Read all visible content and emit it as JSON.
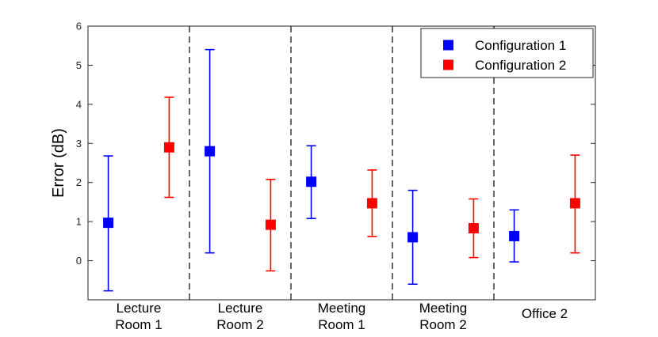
{
  "chart_data": {
    "type": "scatter",
    "title": "",
    "xlabel": "",
    "ylabel": "Error (dB)",
    "ylim": [
      -1,
      6
    ],
    "yticks": [
      0,
      1,
      2,
      3,
      4,
      5,
      6
    ],
    "categories": [
      [
        "Lecture",
        "Room 1"
      ],
      [
        "Lecture",
        "Room 2"
      ],
      [
        "Meeting",
        "Room 1"
      ],
      [
        "Meeting",
        "Room 2"
      ],
      [
        "Office 2"
      ]
    ],
    "series": [
      {
        "name": "Configuration 1",
        "color": "#0000ff",
        "values": [
          0.97,
          2.8,
          2.02,
          0.6,
          0.63
        ],
        "lower": [
          -0.77,
          0.2,
          1.08,
          -0.6,
          -0.03
        ],
        "upper": [
          2.68,
          5.4,
          2.94,
          1.8,
          1.3
        ]
      },
      {
        "name": "Configuration 2",
        "color": "#ff0000",
        "values": [
          2.9,
          0.92,
          1.47,
          0.83,
          1.47
        ],
        "lower": [
          1.62,
          -0.26,
          0.62,
          0.08,
          0.2
        ],
        "upper": [
          4.18,
          2.08,
          2.32,
          1.58,
          2.7
        ]
      }
    ],
    "grid": false,
    "legend_position": "top-right",
    "separators": "dashed vertical lines between categories"
  }
}
